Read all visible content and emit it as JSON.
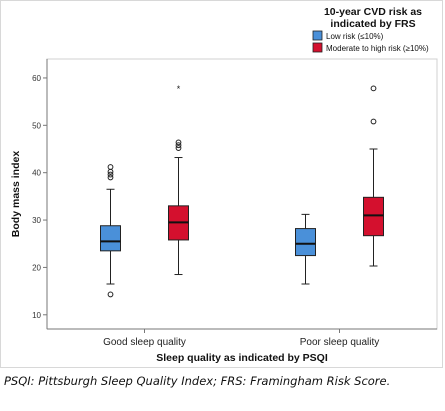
{
  "chart_data": {
    "type": "boxplot",
    "ylabel": "Body mass index",
    "xlabel": "Sleep quality as indicated by PSQI",
    "ylim": [
      7,
      64
    ],
    "yticks": [
      10,
      20,
      30,
      40,
      50,
      60
    ],
    "grid": false,
    "legend": {
      "position": "top-right",
      "title_lines": [
        "10-year CVD risk as",
        "indicated by FRS"
      ],
      "items": [
        {
          "label": "Low risk (≤10%)",
          "color": "#4a90d9"
        },
        {
          "label": "Moderate to high risk (≥10%)",
          "color": "#d4102e"
        }
      ]
    },
    "categories": [
      "Good sleep quality",
      "Poor sleep quality"
    ],
    "series": [
      {
        "name": "Low risk (≤10%)",
        "color": "#4a90d9",
        "boxes": [
          {
            "whisker_low": 16.5,
            "q1": 23.5,
            "median": 25.5,
            "q3": 28.8,
            "whisker_high": 36.5,
            "outliers": [
              14.3,
              39.0,
              39.6,
              40.2,
              41.2
            ],
            "extremes": []
          },
          {
            "whisker_low": 16.5,
            "q1": 22.5,
            "median": 25.0,
            "q3": 28.2,
            "whisker_high": 31.2,
            "outliers": [],
            "extremes": []
          }
        ]
      },
      {
        "name": "Moderate to high risk (≥10%)",
        "color": "#d4102e",
        "boxes": [
          {
            "whisker_low": 18.5,
            "q1": 25.8,
            "median": 29.5,
            "q3": 33.0,
            "whisker_high": 43.2,
            "outliers": [
              45.2,
              45.8,
              46.4
            ],
            "extremes": [
              57.8
            ]
          },
          {
            "whisker_low": 20.3,
            "q1": 26.7,
            "median": 31.0,
            "q3": 34.8,
            "whisker_high": 45.0,
            "outliers": [
              50.8,
              57.8
            ],
            "extremes": []
          }
        ]
      }
    ]
  },
  "caption": "PSQI: Pittsburgh Sleep Quality Index; FRS: Framingham Risk Score."
}
